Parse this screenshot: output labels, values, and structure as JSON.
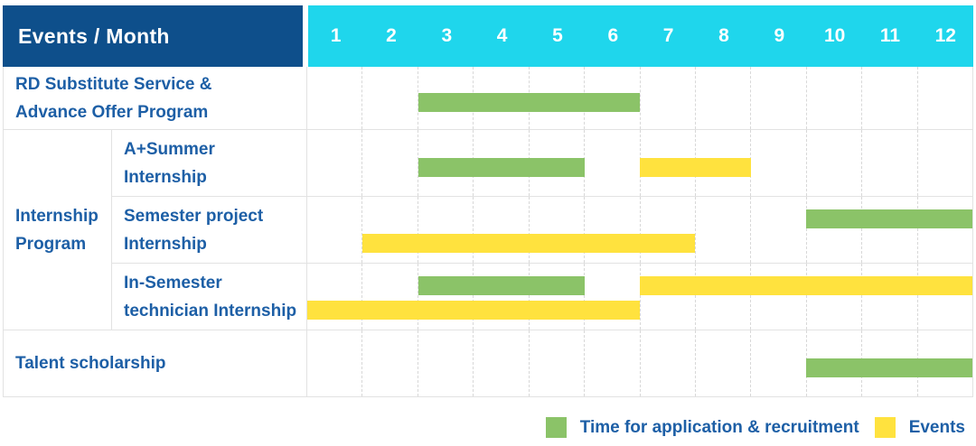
{
  "colors": {
    "header_bg": "#0E4F8B",
    "months_header_bg": "#1FD6EC",
    "header_text": "#FFFFFF",
    "label_text": "#1D5FA6",
    "grid_line": "#E2E2E2",
    "series": {
      "application": "#8BC368",
      "events": "#FFE23E"
    }
  },
  "header": {
    "corner_label": "Events / Month"
  },
  "chart_data": {
    "type": "bar",
    "subtype": "gantt",
    "title": "Events / Month",
    "x_axis": {
      "label": "Month",
      "ticks": [
        "1",
        "2",
        "3",
        "4",
        "5",
        "6",
        "7",
        "8",
        "9",
        "10",
        "11",
        "12"
      ],
      "range": [
        1,
        12
      ]
    },
    "grid": "dashed-vertical-month-lines",
    "legend_position": "bottom-right",
    "legend": [
      {
        "series": "application",
        "label": "Time for application & recruitment"
      },
      {
        "series": "events",
        "label": "Events"
      }
    ],
    "rows": [
      {
        "kind": "simple",
        "label": "RD Substitute Service &\nAdvance Offer Program",
        "bars": [
          {
            "series": "application",
            "start_month": 3,
            "end_month": 6,
            "lane": "middle"
          }
        ]
      },
      {
        "kind": "group",
        "label": "Internship\nProgram",
        "children": [
          {
            "label": "A+Summer\nInternship",
            "bars": [
              {
                "series": "application",
                "start_month": 3,
                "end_month": 5,
                "lane": "middle"
              },
              {
                "series": "events",
                "start_month": 7,
                "end_month": 8,
                "lane": "middle"
              }
            ]
          },
          {
            "label": "Semester project\nInternship",
            "bars": [
              {
                "series": "application",
                "start_month": 10,
                "end_month": 12,
                "lane": "top"
              },
              {
                "series": "events",
                "start_month": 2,
                "end_month": 7,
                "lane": "bottom"
              }
            ]
          },
          {
            "label": "In-Semester\ntechnician Internship",
            "bars": [
              {
                "series": "application",
                "start_month": 3,
                "end_month": 5,
                "lane": "top"
              },
              {
                "series": "events",
                "start_month": 7,
                "end_month": 12,
                "lane": "top"
              },
              {
                "series": "events",
                "start_month": 1,
                "end_month": 6,
                "lane": "bottom"
              }
            ]
          }
        ]
      },
      {
        "kind": "simple",
        "label": "Talent scholarship",
        "bars": [
          {
            "series": "application",
            "start_month": 10,
            "end_month": 12,
            "lane": "middle"
          }
        ]
      }
    ]
  }
}
